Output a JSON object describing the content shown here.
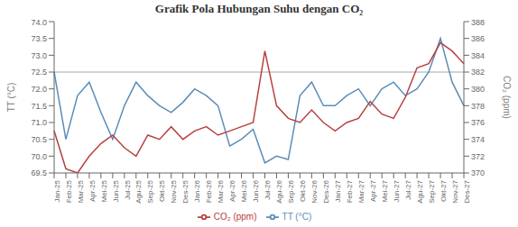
{
  "chart_data": {
    "type": "line",
    "title": "Grafik Pola Hubungan Suhu dengan CO₂",
    "ylabel": "TT (°C)",
    "y2label": "CO₂ (ppm)",
    "categories": [
      "Jan-25",
      "Feb-25",
      "Mar-25",
      "Apr-25",
      "Mei-25",
      "Jun-25",
      "Jul-25",
      "Agu-25",
      "Sep-25",
      "Okt-25",
      "Nov-25",
      "Des-25",
      "Jan-26",
      "Feb-26",
      "Mar-26",
      "Apr-26",
      "Mei-26",
      "Jun-26",
      "Jul-26",
      "Agu-26",
      "Sep-26",
      "Okt-26",
      "Nov-26",
      "Des-26",
      "Jan-27",
      "Feb-27",
      "Mar-27",
      "Apr-27",
      "Mei-27",
      "Jun-27",
      "Jul-27",
      "Agu-27",
      "Sep-27",
      "Okt-27",
      "Nov-27",
      "Des-27"
    ],
    "series": [
      {
        "name": "TT (°C)",
        "color": "#5b8db8",
        "values": [
          72.5,
          70.5,
          71.8,
          72.2,
          71.3,
          70.5,
          71.5,
          72.2,
          71.8,
          71.5,
          71.3,
          71.6,
          72.0,
          71.8,
          71.5,
          70.3,
          70.5,
          70.8,
          69.8,
          70.0,
          69.9,
          71.8,
          72.2,
          71.5,
          71.5,
          71.8,
          72.0,
          71.5,
          72.0,
          72.2,
          71.8,
          72.0,
          72.5,
          73.5,
          72.2,
          71.5
        ]
      },
      {
        "name": "CO₂ (ppm)",
        "color": "#b84040",
        "axis": "y2",
        "values": [
          375.0,
          370.5,
          370.0,
          372.0,
          373.5,
          374.5,
          373.0,
          372.0,
          374.5,
          374.0,
          375.5,
          374.0,
          375.0,
          375.5,
          374.5,
          375.0,
          375.5,
          376.0,
          384.5,
          378.0,
          376.5,
          376.0,
          377.5,
          376.0,
          375.0,
          376.0,
          376.5,
          378.5,
          377.0,
          376.5,
          379.0,
          382.5,
          383.0,
          385.5,
          384.5,
          383.0
        ]
      }
    ],
    "ylim": [
      69.5,
      74.0
    ],
    "yticks": [
      69.5,
      {
        "value": 70,
        "label": "70.0"
      },
      70.5,
      {
        "value": 71,
        "label": "71.0"
      },
      71.5,
      {
        "value": 72,
        "label": "72.0"
      },
      72.5,
      {
        "value": 73,
        "label": "73.0"
      },
      73.5,
      {
        "value": 74,
        "label": "74.0"
      }
    ],
    "y2lim": [
      370.0,
      388.0
    ],
    "y2ticks": [
      370,
      372,
      374,
      376,
      378,
      380,
      382,
      384,
      386,
      388
    ],
    "reference_lines": [
      {
        "y": 72.5,
        "color": "gray"
      }
    ],
    "grid": false,
    "legend": "bottom"
  }
}
